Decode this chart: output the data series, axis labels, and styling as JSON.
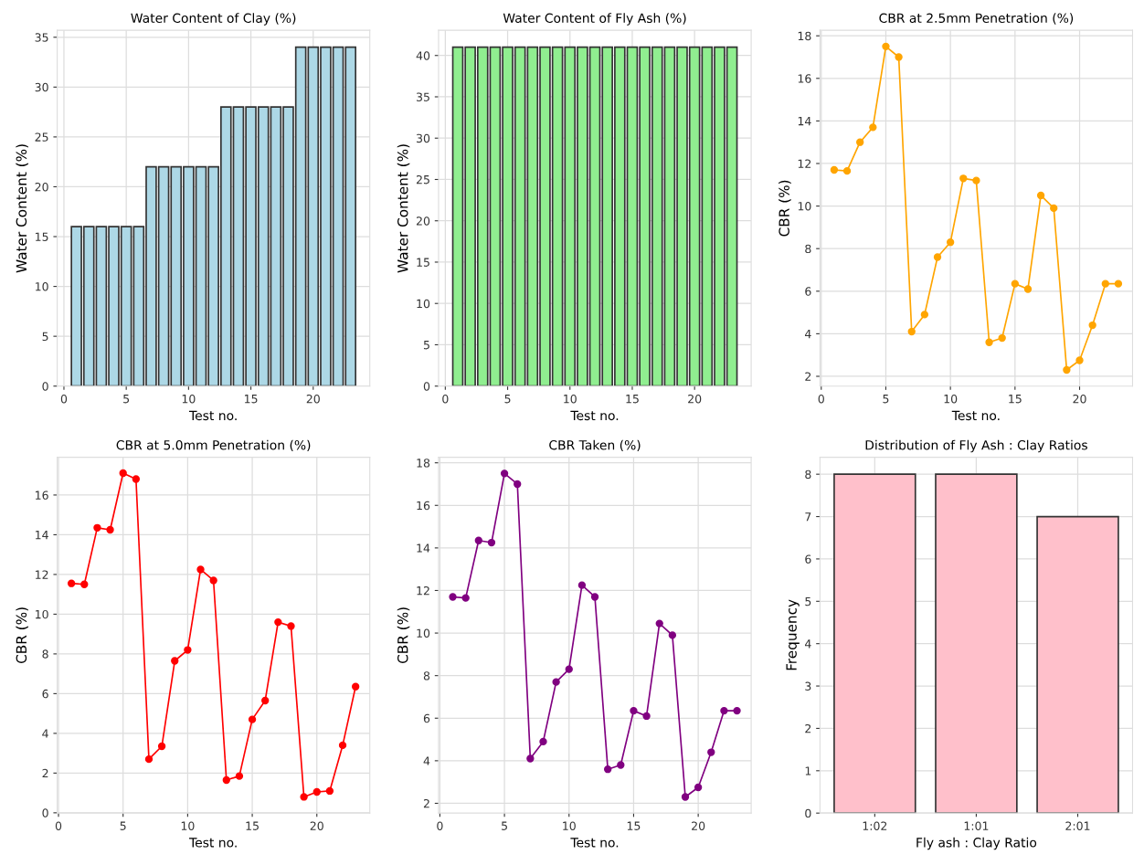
{
  "chart_data": [
    {
      "type": "bar",
      "title": "Water Content of Clay (%)",
      "xlabel": "Test no.",
      "ylabel": "Water Content (%)",
      "x": [
        1,
        2,
        3,
        4,
        5,
        6,
        7,
        8,
        9,
        10,
        11,
        12,
        13,
        14,
        15,
        16,
        17,
        18,
        19,
        20,
        21,
        22,
        23
      ],
      "series": [
        {
          "color": "#add8e6",
          "values": [
            16,
            16,
            16,
            16,
            16,
            16,
            22,
            22,
            22,
            22,
            22,
            22,
            28,
            28,
            28,
            28,
            28,
            28,
            34,
            34,
            34,
            34,
            34
          ]
        }
      ],
      "xlim": [
        -0.54,
        24.54
      ],
      "xticks": [
        0,
        5,
        10,
        15,
        20
      ],
      "ylim": [
        0,
        35.7
      ],
      "yticks": [
        0,
        5,
        10,
        15,
        20,
        25,
        30,
        35
      ],
      "grid": true
    },
    {
      "type": "bar",
      "title": "Water Content of Fly Ash (%)",
      "xlabel": "Test no.",
      "ylabel": "Water Content (%)",
      "x": [
        1,
        2,
        3,
        4,
        5,
        6,
        7,
        8,
        9,
        10,
        11,
        12,
        13,
        14,
        15,
        16,
        17,
        18,
        19,
        20,
        21,
        22,
        23
      ],
      "series": [
        {
          "color": "#90ee90",
          "values": [
            41,
            41,
            41,
            41,
            41,
            41,
            41,
            41,
            41,
            41,
            41,
            41,
            41,
            41,
            41,
            41,
            41,
            41,
            41,
            41,
            41,
            41,
            41
          ]
        }
      ],
      "xlim": [
        -0.54,
        24.54
      ],
      "xticks": [
        0,
        5,
        10,
        15,
        20
      ],
      "ylim": [
        0,
        43.05
      ],
      "yticks": [
        0,
        5,
        10,
        15,
        20,
        25,
        30,
        35,
        40
      ],
      "grid": true
    },
    {
      "type": "line",
      "title": "CBR at 2.5mm Penetration (%)",
      "xlabel": "Test no.",
      "ylabel": "CBR (%)",
      "x": [
        1,
        2,
        3,
        4,
        5,
        6,
        7,
        8,
        9,
        10,
        11,
        12,
        13,
        14,
        15,
        16,
        17,
        18,
        19,
        20,
        21,
        22,
        23
      ],
      "series": [
        {
          "color": "#ffa500",
          "values": [
            11.7,
            11.65,
            13.0,
            13.7,
            17.5,
            17.0,
            4.1,
            4.9,
            7.6,
            8.3,
            11.3,
            11.2,
            3.6,
            3.8,
            6.35,
            6.1,
            10.5,
            9.9,
            2.3,
            2.75,
            4.4,
            6.35,
            6.35
          ]
        }
      ],
      "xlim": [
        -0.1,
        24.1
      ],
      "xticks": [
        0,
        5,
        10,
        15,
        20
      ],
      "ylim": [
        1.54,
        18.26
      ],
      "yticks": [
        2,
        4,
        6,
        8,
        10,
        12,
        14,
        16,
        18
      ],
      "grid": true,
      "marker": "circle",
      "line_style": "solid"
    },
    {
      "type": "line",
      "title": "CBR at 5.0mm Penetration (%)",
      "xlabel": "Test no.",
      "ylabel": "CBR (%)",
      "x": [
        1,
        2,
        3,
        4,
        5,
        6,
        7,
        8,
        9,
        10,
        11,
        12,
        13,
        14,
        15,
        16,
        17,
        18,
        19,
        20,
        21,
        22,
        23
      ],
      "series": [
        {
          "color": "#ff0000",
          "values": [
            11.55,
            11.5,
            14.35,
            14.25,
            17.1,
            16.8,
            2.7,
            3.35,
            7.65,
            8.2,
            12.25,
            11.7,
            1.65,
            1.85,
            4.7,
            5.65,
            9.6,
            9.4,
            0.8,
            1.05,
            1.1,
            3.4,
            6.35
          ]
        }
      ],
      "xlim": [
        -0.1,
        24.1
      ],
      "xticks": [
        0,
        5,
        10,
        15,
        20
      ],
      "ylim": [
        -0.015,
        17.9
      ],
      "yticks": [
        0,
        2,
        4,
        6,
        8,
        10,
        12,
        14,
        16
      ],
      "grid": true,
      "marker": "circle",
      "line_style": "solid"
    },
    {
      "type": "line",
      "title": "CBR Taken (%)",
      "xlabel": "Test no.",
      "ylabel": "CBR (%)",
      "x": [
        1,
        2,
        3,
        4,
        5,
        6,
        7,
        8,
        9,
        10,
        11,
        12,
        13,
        14,
        15,
        16,
        17,
        18,
        19,
        20,
        21,
        22,
        23
      ],
      "series": [
        {
          "color": "#800080",
          "values": [
            11.7,
            11.65,
            14.35,
            14.25,
            17.5,
            17.0,
            4.1,
            4.9,
            7.7,
            8.3,
            12.25,
            11.7,
            3.6,
            3.8,
            6.35,
            6.1,
            10.45,
            9.9,
            2.3,
            2.75,
            4.4,
            6.35,
            6.35
          ]
        }
      ],
      "xlim": [
        -0.1,
        24.1
      ],
      "xticks": [
        0,
        5,
        10,
        15,
        20
      ],
      "ylim": [
        1.54,
        18.26
      ],
      "yticks": [
        2,
        4,
        6,
        8,
        10,
        12,
        14,
        16,
        18
      ],
      "grid": true,
      "marker": "circle",
      "line_style": "solid"
    },
    {
      "type": "bar",
      "title": "Distribution of Fly Ash : Clay Ratios",
      "xlabel": "Fly ash : Clay Ratio",
      "ylabel": "Frequency",
      "categories": [
        "1:02",
        "1:01",
        "2:01"
      ],
      "series": [
        {
          "color": "#ffc0cb",
          "values": [
            8,
            8,
            7
          ]
        }
      ],
      "ylim": [
        0,
        8.4
      ],
      "yticks": [
        0,
        1,
        2,
        3,
        4,
        5,
        6,
        7,
        8
      ],
      "grid": true
    }
  ]
}
